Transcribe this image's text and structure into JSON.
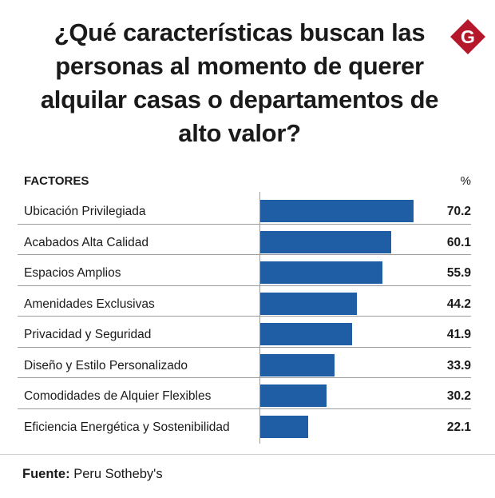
{
  "title": "¿Qué características buscan las personas al momento de querer alquilar casas o departamentos de alto valor?",
  "logo_letter": "G",
  "colors": {
    "bar": "#1f5ea4",
    "logo": "#b5182a"
  },
  "source_label": "Fuente:",
  "source_text": "Peru Sotheby's",
  "chart_data": {
    "type": "bar",
    "orientation": "horizontal",
    "header_category": "FACTORES",
    "header_value": "%",
    "categories": [
      "Ubicación Privilegiada",
      "Acabados Alta Calidad",
      "Espacios Amplios",
      "Amenidades Exclusivas",
      "Privacidad y Seguridad",
      "Diseño y Estilo Personalizado",
      "Comodidades de Alquier Flexibles",
      "Eficiencia Energética y Sostenibilidad"
    ],
    "values": [
      70.2,
      60.1,
      55.9,
      44.2,
      41.9,
      33.9,
      30.2,
      22.1
    ],
    "value_labels": [
      "70.2",
      "60.1",
      "55.9",
      "44.2",
      "41.9",
      "33.9",
      "30.2",
      "22.1"
    ],
    "xlim": [
      0,
      70.2
    ]
  }
}
